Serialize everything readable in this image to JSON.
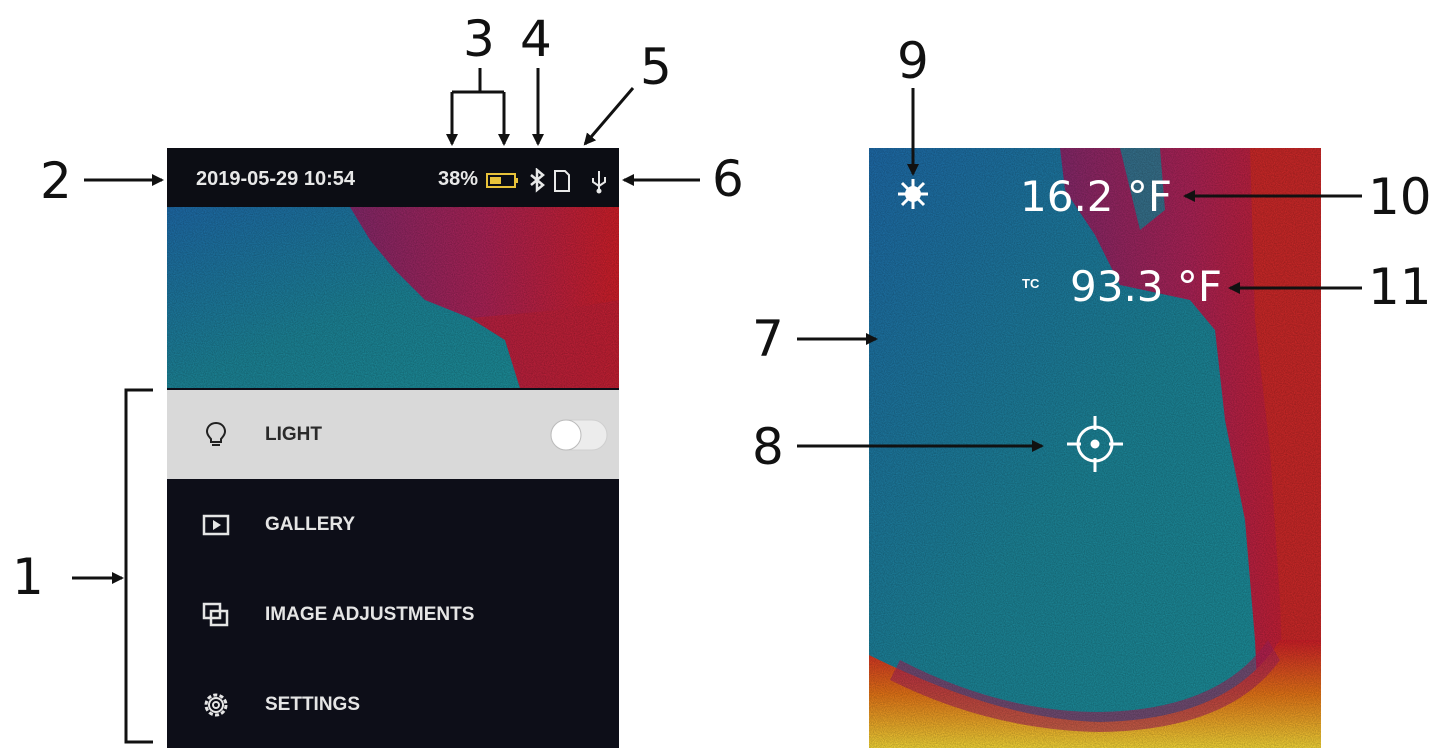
{
  "callouts": {
    "c1": "1",
    "c2": "2",
    "c3": "3",
    "c4": "4",
    "c5": "5",
    "c6": "6",
    "c7": "7",
    "c8": "8",
    "c9": "9",
    "c10": "10",
    "c11": "11"
  },
  "status_bar": {
    "datetime": "2019-05-29 10:54",
    "battery_percent": "38%",
    "icons": [
      "battery-icon",
      "bluetooth-icon",
      "sd-card-icon",
      "usb-icon"
    ]
  },
  "menu": {
    "items": [
      {
        "label": "LIGHT",
        "icon": "lightbulb-icon",
        "selected": true,
        "toggle": "off"
      },
      {
        "label": "GALLERY",
        "icon": "gallery-play-icon"
      },
      {
        "label": "IMAGE ADJUSTMENTS",
        "icon": "image-adjust-icon"
      },
      {
        "label": "SETTINGS",
        "icon": "gear-icon"
      }
    ]
  },
  "thermal": {
    "center_temp": "16.2 °F",
    "tc_label": "TC",
    "tc_temp": "93.3 °F",
    "icons": [
      "sun-icon",
      "crosshair-icon"
    ]
  },
  "colors": {
    "status_bg": "#0c0d14",
    "menu_bg": "#0d0e18",
    "menu_selected_bg": "#d9d9d9",
    "thermal_cold": "#1b8a9c",
    "thermal_hot": "#d9202a"
  }
}
